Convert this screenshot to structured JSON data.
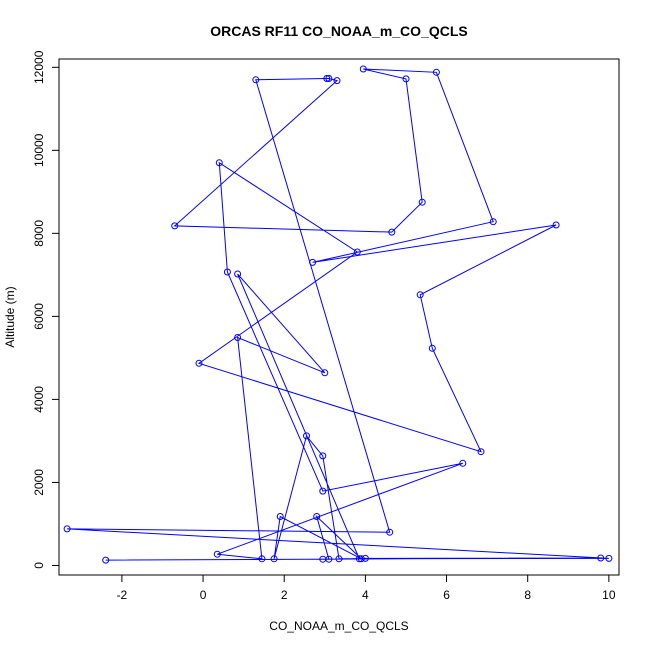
{
  "chart_data": {
    "type": "line",
    "title": "ORCAS RF11 CO_NOAA_m_CO_QCLS",
    "xlabel": "CO_NOAA_m_CO_QCLS",
    "ylabel": "Altitude (m)",
    "xlim": [
      -3.55,
      10.25
    ],
    "ylim": [
      -230,
      12200
    ],
    "xticks": [
      -2,
      0,
      2,
      4,
      6,
      8,
      10
    ],
    "yticks": [
      0,
      2000,
      4000,
      6000,
      8000,
      10000,
      12000
    ],
    "series": [
      {
        "color": "#0000ff",
        "marker": "open-circle",
        "points": [
          [
            -2.4,
            130
          ],
          [
            9.8,
            180
          ],
          [
            4.0,
            170
          ],
          [
            3.1,
            150
          ],
          [
            2.8,
            1180
          ],
          [
            3.9,
            160
          ],
          [
            1.9,
            1180
          ],
          [
            1.75,
            160
          ],
          [
            2.55,
            3120
          ],
          [
            2.95,
            2640
          ],
          [
            3.35,
            160
          ],
          [
            10.0,
            170
          ],
          [
            -3.35,
            880
          ],
          [
            4.6,
            800
          ],
          [
            1.3,
            11700
          ],
          [
            3.05,
            11730
          ],
          [
            3.1,
            11730
          ],
          [
            3.3,
            11680
          ],
          [
            -0.7,
            8180
          ],
          [
            4.65,
            8030
          ],
          [
            5.4,
            8750
          ],
          [
            5.0,
            11720
          ],
          [
            3.95,
            11960
          ],
          [
            5.75,
            11880
          ],
          [
            7.15,
            8280
          ],
          [
            2.7,
            7300
          ],
          [
            8.7,
            8200
          ],
          [
            5.35,
            6520
          ],
          [
            5.65,
            5230
          ],
          [
            6.85,
            2740
          ],
          [
            -0.1,
            4870
          ],
          [
            3.8,
            7550
          ],
          [
            0.4,
            9700
          ],
          [
            0.6,
            7070
          ],
          [
            2.95,
            1790
          ],
          [
            6.4,
            2460
          ],
          [
            0.35,
            270
          ],
          [
            1.45,
            160
          ],
          [
            0.85,
            5490
          ],
          [
            3.0,
            4640
          ],
          [
            0.85,
            7020
          ],
          [
            3.85,
            160
          ],
          [
            2.95,
            150
          ]
        ]
      }
    ]
  }
}
